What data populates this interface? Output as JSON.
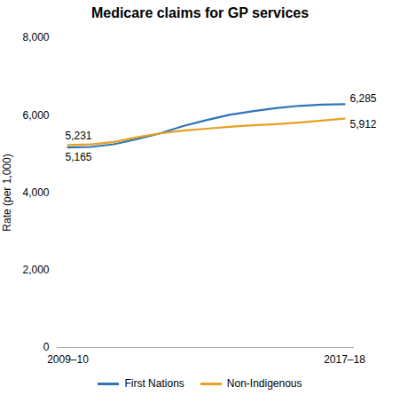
{
  "chart_data": {
    "type": "line",
    "title": "Medicare claims for GP services",
    "ylabel": "Rate (per 1,000)",
    "categories": [
      "2009–10",
      null,
      null,
      null,
      null,
      null,
      null,
      null,
      null,
      null,
      null,
      null,
      "2017–18"
    ],
    "series": [
      {
        "name": "First Nations",
        "color": "#2e75b6",
        "values": [
          5165,
          5180,
          5250,
          5380,
          5530,
          5720,
          5870,
          6010,
          6100,
          6180,
          6240,
          6270,
          6285
        ],
        "value_labels": [
          "5,165",
          null,
          null,
          null,
          null,
          null,
          null,
          null,
          null,
          null,
          null,
          null,
          "6,285"
        ]
      },
      {
        "name": "Non-Indigenous",
        "color": "#e8a020",
        "values": [
          5231,
          5245,
          5310,
          5430,
          5530,
          5600,
          5650,
          5700,
          5740,
          5770,
          5810,
          5860,
          5912
        ],
        "value_labels": [
          "5,231",
          null,
          null,
          null,
          null,
          null,
          null,
          null,
          null,
          null,
          null,
          null,
          "5,912"
        ]
      }
    ],
    "ylim": [
      0,
      8000
    ],
    "yticks": [
      0,
      {
        "value": 2000,
        "label": "2,000"
      },
      {
        "value": 4000,
        "label": "4,000"
      },
      {
        "value": 6000,
        "label": "6,000"
      },
      {
        "value": 8000,
        "label": "8,000"
      }
    ],
    "grid": false,
    "legend": "bottom",
    "data_labels": true
  }
}
